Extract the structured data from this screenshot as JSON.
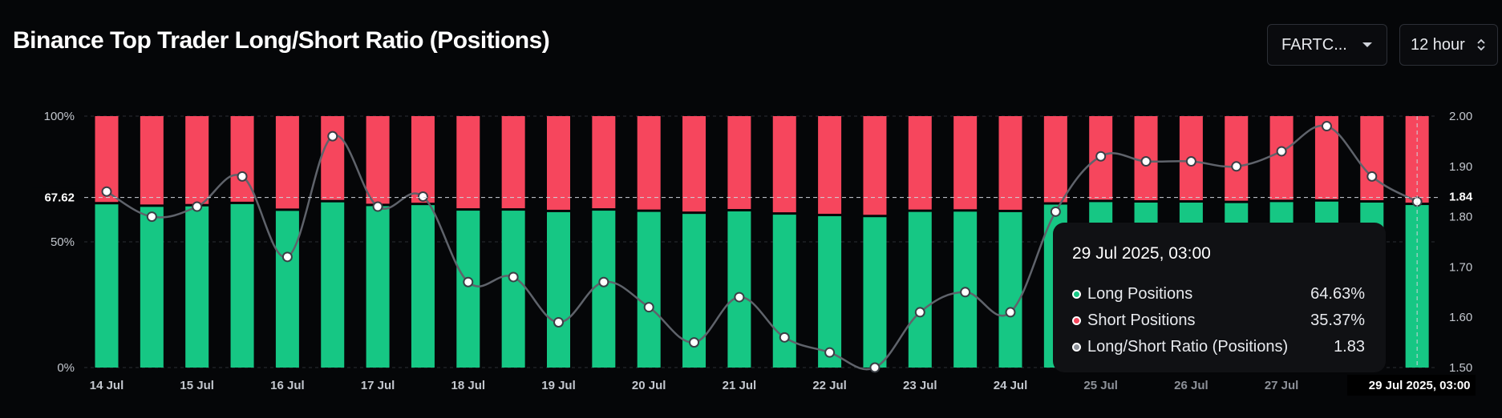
{
  "title": "Binance Top Trader Long/Short Ratio (Positions)",
  "controls": {
    "symbol": "FARTC...",
    "interval": "12 hour"
  },
  "chart_data": {
    "type": "bar",
    "x_tick_labels": [
      "14 Jul",
      "15 Jul",
      "16 Jul",
      "17 Jul",
      "18 Jul",
      "19 Jul",
      "20 Jul",
      "21 Jul",
      "22 Jul",
      "23 Jul",
      "24 Jul",
      "25 Jul",
      "26 Jul",
      "27 Jul"
    ],
    "hover_x_label": "29 Jul 2025, 03:00",
    "left_axis": {
      "ticks": [
        "0%",
        "50%",
        "100%"
      ],
      "ylim": [
        0,
        100
      ],
      "reference_label": "67.62",
      "reference_value": 67.62
    },
    "right_axis": {
      "ticks": [
        "1.50",
        "1.60",
        "1.70",
        "1.80",
        "1.90",
        "2.00"
      ],
      "ylim": [
        1.5,
        2.0
      ],
      "current_label": "1.84",
      "current_value": 1.84
    },
    "colors": {
      "long": "#16c784",
      "short": "#f6465d",
      "ratio_line": "#5f636b"
    },
    "series": [
      {
        "name": "Long Positions",
        "values": [
          64.9,
          63.9,
          64.1,
          65.0,
          62.3,
          65.7,
          64.2,
          64.6,
          62.4,
          62.4,
          61.8,
          62.4,
          61.9,
          61.1,
          62.1,
          60.8,
          60.2,
          59.8,
          61.9,
          62.0,
          61.8,
          64.8,
          65.8,
          65.6,
          65.6,
          65.4,
          65.8,
          66.0,
          65.6,
          64.63
        ]
      },
      {
        "name": "Short Positions",
        "values": [
          35.1,
          36.1,
          35.9,
          35.0,
          37.7,
          34.3,
          35.8,
          35.4,
          37.6,
          37.6,
          38.2,
          37.6,
          38.1,
          38.9,
          37.9,
          39.2,
          39.8,
          40.2,
          38.1,
          38.0,
          38.2,
          35.2,
          34.2,
          34.4,
          34.4,
          34.6,
          34.2,
          34.0,
          34.4,
          35.37
        ]
      },
      {
        "name": "Long/Short Ratio (Positions)",
        "values": [
          1.85,
          1.8,
          1.82,
          1.88,
          1.72,
          1.96,
          1.82,
          1.84,
          1.67,
          1.68,
          1.59,
          1.67,
          1.62,
          1.55,
          1.64,
          1.56,
          1.53,
          1.5,
          1.61,
          1.65,
          1.61,
          1.81,
          1.92,
          1.91,
          1.91,
          1.9,
          1.93,
          1.98,
          1.88,
          1.83
        ]
      }
    ]
  },
  "tooltip": {
    "date": "29 Jul 2025, 03:00",
    "rows": [
      {
        "label": "Long Positions",
        "value": "64.63%",
        "color": "#16c784"
      },
      {
        "label": "Short Positions",
        "value": "35.37%",
        "color": "#f6465d"
      },
      {
        "label": "Long/Short Ratio (Positions)",
        "value": "1.83",
        "color": "#8e939b"
      }
    ]
  }
}
